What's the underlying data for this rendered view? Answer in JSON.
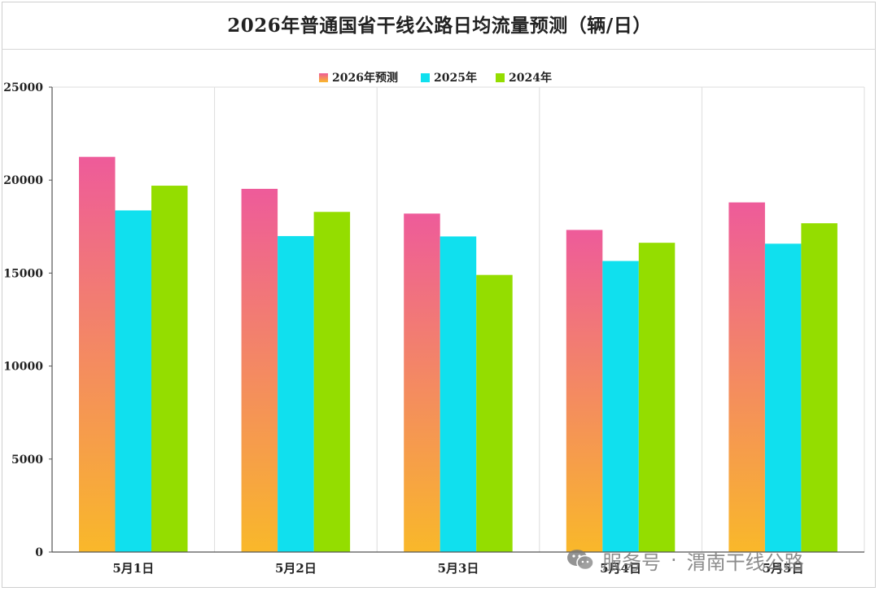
{
  "chart_data": {
    "type": "bar",
    "title": "2026年普通国省干线公路日均流量预测（辆/日）",
    "categories": [
      "5月1日",
      "5月2日",
      "5月3日",
      "5月4日",
      "5月5日"
    ],
    "series": [
      {
        "name": "2026年预测",
        "values": [
          21250,
          19530,
          18200,
          17320,
          18800
        ]
      },
      {
        "name": "2025年",
        "values": [
          18370,
          16990,
          16970,
          15650,
          16580
        ]
      },
      {
        "name": "2024年",
        "values": [
          19700,
          18290,
          14900,
          16630,
          17680
        ]
      }
    ],
    "ylim": [
      0,
      25000
    ],
    "yticks": [
      0,
      5000,
      10000,
      15000,
      20000,
      25000
    ],
    "grid": "vertical separators",
    "legend": "top-center",
    "colors": {
      "series_2026_top": "#ee5b9a",
      "series_2026_bottom": "#f9b82a",
      "series_2025": "#10e0ee",
      "series_2024": "#94dd00"
    }
  },
  "watermark": {
    "label": "服务号",
    "separator": "·",
    "account": "渭南干线公路",
    "icon": "wechat-icon"
  }
}
